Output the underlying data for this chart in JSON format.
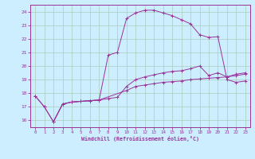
{
  "xlabel": "Windchill (Refroidissement éolien,°C)",
  "background_color": "#cceeff",
  "grid_color": "#aaccbb",
  "line_color": "#993399",
  "xlim": [
    -0.5,
    23.5
  ],
  "ylim": [
    15.5,
    24.5
  ],
  "yticks": [
    16,
    17,
    18,
    19,
    20,
    21,
    22,
    23,
    24
  ],
  "xticks": [
    0,
    1,
    2,
    3,
    4,
    5,
    6,
    7,
    8,
    9,
    10,
    11,
    12,
    13,
    14,
    15,
    16,
    17,
    18,
    19,
    20,
    21,
    22,
    23
  ],
  "series1_x": [
    0,
    1,
    2,
    3,
    4,
    5,
    6,
    7,
    10,
    11,
    12,
    13,
    14,
    15,
    16,
    17,
    18,
    19,
    20,
    21,
    22,
    23
  ],
  "series1_y": [
    17.8,
    17.0,
    15.9,
    17.2,
    17.35,
    17.4,
    17.45,
    17.5,
    18.2,
    18.5,
    18.6,
    18.7,
    18.8,
    18.85,
    18.9,
    19.0,
    19.05,
    19.1,
    19.15,
    19.2,
    19.3,
    19.4
  ],
  "series2_x": [
    0,
    1,
    2,
    3,
    4,
    5,
    6,
    7,
    8,
    9,
    10,
    11,
    12,
    13,
    14,
    15,
    16,
    17,
    18,
    19,
    20,
    21,
    22,
    23
  ],
  "series2_y": [
    17.8,
    17.0,
    15.9,
    17.2,
    17.35,
    17.4,
    17.45,
    17.5,
    17.6,
    17.7,
    18.5,
    19.0,
    19.2,
    19.35,
    19.5,
    19.6,
    19.65,
    19.8,
    20.0,
    19.3,
    19.5,
    19.2,
    19.4,
    19.5
  ],
  "series3_x": [
    2,
    3,
    4,
    5,
    6,
    7,
    8,
    9,
    10,
    11,
    12,
    13,
    14,
    15,
    16,
    17,
    18,
    19,
    20,
    21,
    22,
    23
  ],
  "series3_y": [
    15.9,
    17.2,
    17.35,
    17.4,
    17.45,
    17.5,
    20.8,
    21.0,
    23.5,
    23.9,
    24.1,
    24.1,
    23.9,
    23.7,
    23.4,
    23.1,
    22.3,
    22.1,
    22.15,
    19.0,
    18.8,
    18.9
  ]
}
